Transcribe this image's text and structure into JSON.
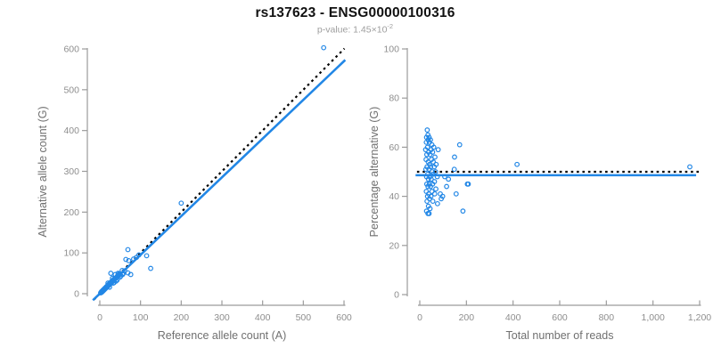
{
  "title": "rs137623 - ENSG00000100316",
  "subtitle": {
    "text": "p-value: 1.45×10",
    "superscript": "-2"
  },
  "colors": {
    "accent_blue": "#2287e6",
    "reference_line": "#000000",
    "axis": "#9b9b9b",
    "tick_text": "#8e8e8e",
    "axis_label_text": "#707070",
    "title_text": "#111111",
    "subtitle_text": "#9e9e9e"
  },
  "chart_data": [
    {
      "type": "scatter",
      "name": "allele-counts-scatter",
      "xlabel": "Reference allele count (A)",
      "ylabel": "Alternative allele count (G)",
      "xlim": [
        0,
        600
      ],
      "ylim": [
        0,
        600
      ],
      "xticks": [
        "0",
        "100",
        "200",
        "300",
        "400",
        "500",
        "600"
      ],
      "yticks": [
        "0",
        "100",
        "200",
        "300",
        "400",
        "500",
        "600"
      ],
      "grid": false,
      "legend": "none",
      "marker": "open-circle",
      "lines": [
        {
          "name": "identity-line",
          "style": "dotted",
          "color": "reference_line",
          "points": [
            [
              -14,
              -14
            ],
            [
              601,
              601
            ]
          ]
        },
        {
          "name": "regression-line",
          "style": "solid",
          "color": "accent_blue",
          "points": [
            [
              -17,
              -16
            ],
            [
              603,
              573
            ]
          ]
        }
      ],
      "points": [
        [
          2,
          2
        ],
        [
          3,
          3
        ],
        [
          4,
          3
        ],
        [
          4,
          5
        ],
        [
          5,
          4
        ],
        [
          6,
          5
        ],
        [
          6,
          6
        ],
        [
          7,
          6
        ],
        [
          7,
          8
        ],
        [
          8,
          7
        ],
        [
          9,
          8
        ],
        [
          9,
          9
        ],
        [
          10,
          9
        ],
        [
          10,
          11
        ],
        [
          11,
          10
        ],
        [
          12,
          11
        ],
        [
          12,
          12
        ],
        [
          13,
          12
        ],
        [
          13,
          14
        ],
        [
          14,
          13
        ],
        [
          15,
          14
        ],
        [
          15,
          15
        ],
        [
          16,
          15
        ],
        [
          16,
          17
        ],
        [
          17,
          16
        ],
        [
          18,
          17
        ],
        [
          18,
          18
        ],
        [
          19,
          18
        ],
        [
          19,
          20
        ],
        [
          20,
          19
        ],
        [
          21,
          20
        ],
        [
          21,
          22
        ],
        [
          22,
          21
        ],
        [
          23,
          22
        ],
        [
          23,
          24
        ],
        [
          24,
          23
        ],
        [
          25,
          24
        ],
        [
          25,
          26
        ],
        [
          26,
          25
        ],
        [
          27,
          26
        ],
        [
          28,
          27
        ],
        [
          28,
          29
        ],
        [
          29,
          28
        ],
        [
          30,
          29
        ],
        [
          31,
          30
        ],
        [
          31,
          32
        ],
        [
          32,
          31
        ],
        [
          33,
          32
        ],
        [
          34,
          33
        ],
        [
          35,
          34
        ],
        [
          35,
          36
        ],
        [
          36,
          35
        ],
        [
          37,
          36
        ],
        [
          38,
          37
        ],
        [
          39,
          38
        ],
        [
          40,
          39
        ],
        [
          41,
          40
        ],
        [
          42,
          41
        ],
        [
          43,
          43
        ],
        [
          44,
          42
        ],
        [
          45,
          44
        ],
        [
          46,
          45
        ],
        [
          47,
          46
        ],
        [
          48,
          47
        ],
        [
          20,
          26
        ],
        [
          24,
          16
        ],
        [
          27,
          50
        ],
        [
          31,
          38
        ],
        [
          33,
          26
        ],
        [
          35,
          27
        ],
        [
          38,
          47
        ],
        [
          40,
          31
        ],
        [
          43,
          34
        ],
        [
          45,
          50
        ],
        [
          48,
          49
        ],
        [
          50,
          41
        ],
        [
          52,
          44
        ],
        [
          55,
          57
        ],
        [
          56,
          47
        ],
        [
          58,
          50
        ],
        [
          61,
          56
        ],
        [
          64,
          84
        ],
        [
          69,
          51
        ],
        [
          69,
          108
        ],
        [
          71,
          81
        ],
        [
          76,
          47
        ],
        [
          83,
          85
        ],
        [
          90,
          89
        ],
        [
          96,
          95
        ],
        [
          115,
          93
        ],
        [
          125,
          62
        ],
        [
          200,
          222
        ],
        [
          550,
          603
        ]
      ]
    },
    {
      "type": "scatter",
      "name": "percentage-vs-reads-scatter",
      "xlabel": "Total number of reads",
      "ylabel": "Percentage alternative (G)",
      "xlim": [
        0,
        1200
      ],
      "ylim": [
        0,
        100
      ],
      "xticks": [
        "0",
        "200",
        "400",
        "600",
        "800",
        "1,000",
        "1,200"
      ],
      "yticks": [
        "0",
        "20",
        "40",
        "60",
        "80",
        "100"
      ],
      "grid": false,
      "legend": "none",
      "marker": "open-circle",
      "lines": [
        {
          "name": "fifty-percent-line",
          "style": "dotted",
          "color": "reference_line",
          "points": [
            [
              -12,
              50
            ],
            [
              1203,
              50
            ]
          ]
        },
        {
          "name": "regression-line",
          "style": "solid",
          "color": "accent_blue",
          "points": [
            [
              -18,
              48.6
            ],
            [
              1185,
              48.6
            ]
          ]
        }
      ],
      "points": [
        [
          32,
          67
        ],
        [
          35,
          65
        ],
        [
          29,
          64
        ],
        [
          40,
          64
        ],
        [
          36,
          63
        ],
        [
          46,
          63
        ],
        [
          28,
          62
        ],
        [
          41,
          62
        ],
        [
          52,
          61
        ],
        [
          171,
          61
        ],
        [
          33,
          60
        ],
        [
          60,
          60
        ],
        [
          25,
          59
        ],
        [
          48,
          59
        ],
        [
          79,
          59
        ],
        [
          38,
          58
        ],
        [
          55,
          58
        ],
        [
          30,
          57
        ],
        [
          44,
          57
        ],
        [
          65,
          56
        ],
        [
          149,
          56
        ],
        [
          27,
          55
        ],
        [
          50,
          55
        ],
        [
          36,
          54
        ],
        [
          58,
          54
        ],
        [
          42,
          53
        ],
        [
          70,
          53
        ],
        [
          417,
          53
        ],
        [
          31,
          52
        ],
        [
          47,
          52
        ],
        [
          62,
          52
        ],
        [
          1158,
          52
        ],
        [
          26,
          51
        ],
        [
          39,
          51
        ],
        [
          148,
          51
        ],
        [
          53,
          50
        ],
        [
          68,
          50
        ],
        [
          34,
          49
        ],
        [
          57,
          49
        ],
        [
          29,
          48
        ],
        [
          44,
          48
        ],
        [
          75,
          48
        ],
        [
          107,
          48
        ],
        [
          37,
          47
        ],
        [
          49,
          47
        ],
        [
          123,
          47
        ],
        [
          63,
          46
        ],
        [
          41,
          45
        ],
        [
          30,
          45
        ],
        [
          55,
          45
        ],
        [
          204,
          45
        ],
        [
          208,
          45
        ],
        [
          35,
          44
        ],
        [
          46,
          44
        ],
        [
          115,
          44
        ],
        [
          69,
          43
        ],
        [
          28,
          42
        ],
        [
          52,
          42
        ],
        [
          38,
          41
        ],
        [
          64,
          41
        ],
        [
          88,
          41
        ],
        [
          156,
          41
        ],
        [
          33,
          40
        ],
        [
          48,
          40
        ],
        [
          98,
          40
        ],
        [
          42,
          39
        ],
        [
          92,
          39
        ],
        [
          56,
          38
        ],
        [
          31,
          38
        ],
        [
          76,
          37
        ],
        [
          37,
          36
        ],
        [
          44,
          35
        ],
        [
          29,
          34
        ],
        [
          185,
          34
        ],
        [
          35,
          33
        ],
        [
          40,
          33
        ]
      ]
    }
  ]
}
